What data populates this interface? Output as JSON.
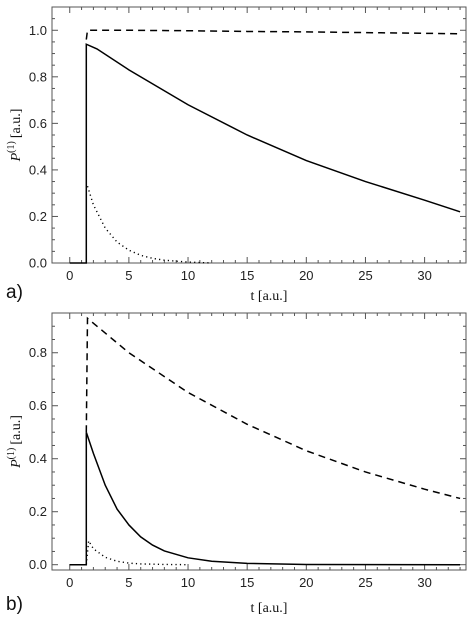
{
  "chart_data": [
    {
      "type": "line",
      "panel_label": "a)",
      "xlabel": "t [a.u.]",
      "ylabel": "P",
      "ylabel_sup": "(1)",
      "ylabel_unit": "[a.u.]",
      "xlim": [
        -1.5,
        33.5
      ],
      "ylim": [
        0,
        1.1
      ],
      "xticks": [
        0,
        5,
        10,
        15,
        20,
        25,
        30
      ],
      "yticks": [
        0.0,
        0.2,
        0.4,
        0.6,
        0.8,
        1.0
      ],
      "ytick_labels": [
        "0.0",
        "0.2",
        "0.4",
        "0.6",
        "0.8",
        "1.0"
      ],
      "grid": false,
      "series": [
        {
          "style": "solid",
          "x": [
            0,
            1.4,
            1.4,
            2.3,
            5,
            10,
            15,
            20,
            25,
            30,
            33
          ],
          "y": [
            0,
            0,
            0.94,
            0.92,
            0.83,
            0.68,
            0.55,
            0.44,
            0.35,
            0.27,
            0.22
          ]
        },
        {
          "style": "dashed",
          "x": [
            1.4,
            1.5,
            5,
            10,
            15,
            20,
            25,
            30,
            33
          ],
          "y": [
            0.96,
            1.0,
            1.0,
            0.998,
            0.995,
            0.993,
            0.99,
            0.987,
            0.985
          ]
        },
        {
          "style": "dotted",
          "x": [
            1.5,
            2,
            3,
            4,
            5,
            6,
            7,
            8,
            10,
            12
          ],
          "y": [
            0.33,
            0.25,
            0.15,
            0.09,
            0.055,
            0.033,
            0.02,
            0.012,
            0.004,
            0.0
          ]
        }
      ]
    },
    {
      "type": "line",
      "panel_label": "b)",
      "xlabel": "t [a.u.]",
      "ylabel": "P",
      "ylabel_sup": "(1)",
      "ylabel_unit": "[a.u.]",
      "xlim": [
        -1.5,
        33.5
      ],
      "ylim": [
        -0.02,
        0.95
      ],
      "xticks": [
        0,
        5,
        10,
        15,
        20,
        25,
        30
      ],
      "yticks": [
        0.0,
        0.2,
        0.4,
        0.6,
        0.8
      ],
      "ytick_labels": [
        "0.0",
        "0.2",
        "0.4",
        "0.6",
        "0.8"
      ],
      "grid": false,
      "series": [
        {
          "style": "solid",
          "x": [
            0,
            1.4,
            1.4,
            2,
            3,
            4,
            5,
            6,
            7,
            8,
            10,
            12,
            15,
            20,
            33
          ],
          "y": [
            0,
            0,
            0.5,
            0.42,
            0.3,
            0.21,
            0.15,
            0.105,
            0.074,
            0.052,
            0.026,
            0.013,
            0.005,
            0.001,
            0
          ]
        },
        {
          "style": "dashed",
          "x": [
            1.4,
            1.5,
            5,
            10,
            15,
            20,
            25,
            30,
            33
          ],
          "y": [
            0.5,
            0.93,
            0.8,
            0.65,
            0.53,
            0.43,
            0.35,
            0.285,
            0.25
          ]
        },
        {
          "style": "dotted",
          "x": [
            1.4,
            1.6,
            2,
            3,
            4,
            5,
            6,
            8,
            10
          ],
          "y": [
            0.0,
            0.09,
            0.06,
            0.028,
            0.013,
            0.006,
            0.003,
            0.001,
            0.0
          ]
        }
      ]
    }
  ]
}
